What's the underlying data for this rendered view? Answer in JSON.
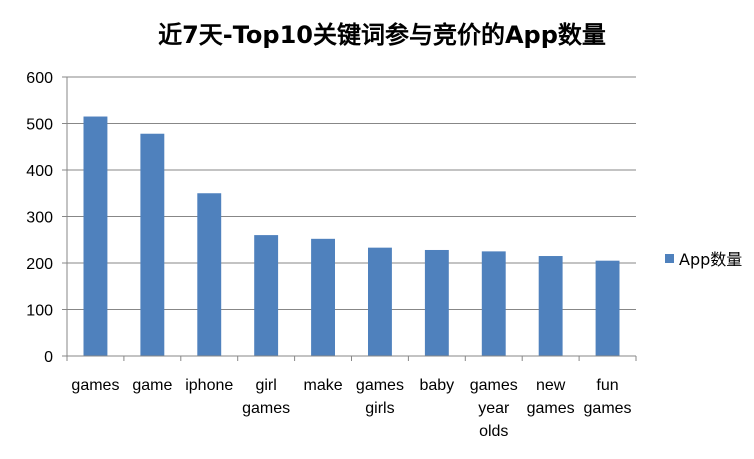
{
  "chart_data": {
    "type": "bar",
    "title": "近7天-Top10关键词参与竞价的App数量",
    "xlabel": "",
    "ylabel": "",
    "categories": [
      [
        "games"
      ],
      [
        "game"
      ],
      [
        "iphone"
      ],
      [
        "girl",
        "games"
      ],
      [
        "make"
      ],
      [
        "games",
        "girls"
      ],
      [
        "baby"
      ],
      [
        "games",
        "year",
        "olds"
      ],
      [
        "new",
        "games"
      ],
      [
        "fun",
        "games"
      ]
    ],
    "series": [
      {
        "name": "App数量",
        "color": "#4f81bd",
        "values": [
          515,
          478,
          350,
          260,
          252,
          233,
          228,
          225,
          215,
          205
        ]
      }
    ],
    "ylim": [
      0,
      600
    ],
    "yticks": [
      0,
      100,
      200,
      300,
      400,
      500,
      600
    ],
    "grid": true,
    "legend": "right"
  }
}
